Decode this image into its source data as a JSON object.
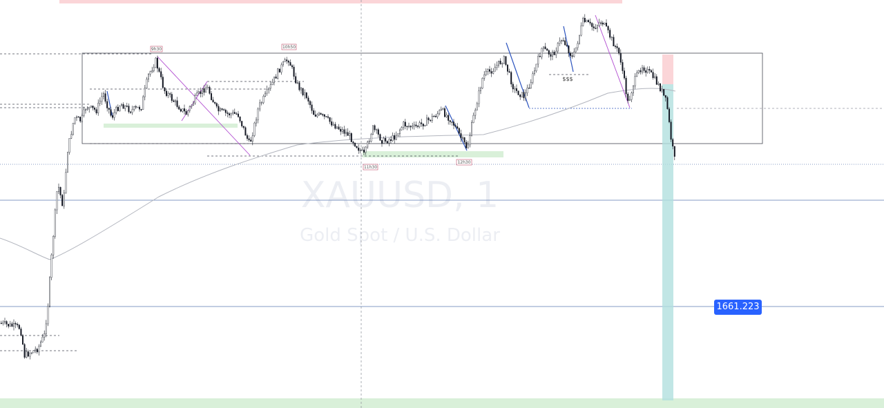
{
  "watermark": {
    "symbol": "XAUUSD, 1",
    "description": "Gold Spot / U.S. Dollar"
  },
  "price_label": "1661.223",
  "time_tags": [
    "9h30",
    "10h50",
    "11h30",
    "12h30"
  ],
  "liquidity_label": "$$$",
  "colors": {
    "candle": "#131722",
    "box_border": "#434651",
    "ma": "#b2b5be",
    "hline": "#5b7ab0",
    "demand_zone": "#d9f0d9",
    "target_zone": "#b2e0de",
    "stop_zone": "#fbd5d8",
    "label_bg": "#2962ff",
    "impulse_blue": "#2a52be",
    "impulse_purple": "#b04ad0",
    "tag_border": "#c0506a"
  },
  "chart_data": {
    "type": "candlestick",
    "symbol": "XAUUSD",
    "timeframe": "1",
    "current_price": 1661.223,
    "series": [
      {
        "name": "XAUUSD, 1",
        "kind": "candles"
      },
      {
        "kind": "moving-average"
      }
    ],
    "annotations": [
      "9h30",
      "10h50",
      "11h30",
      "12h30",
      "$$$"
    ],
    "grid": false,
    "legend": "none"
  }
}
